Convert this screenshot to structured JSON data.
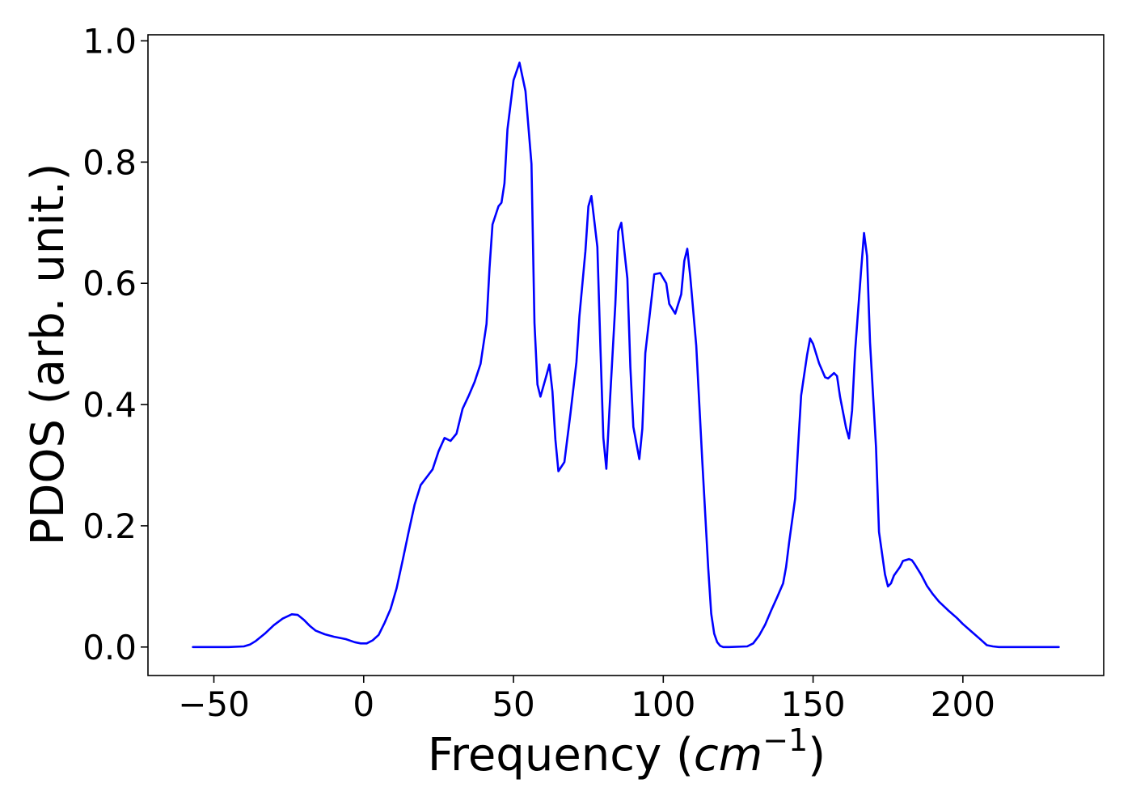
{
  "chart_data": {
    "type": "line",
    "title": "",
    "xlabel": "Frequency (",
    "xlabel_math_base": "cm",
    "xlabel_math_sup": "−1",
    "xlabel_suffix": ")",
    "ylabel": "PDOS (arb. unit.)",
    "xlim": [
      -72,
      247
    ],
    "ylim": [
      -0.047,
      1.01
    ],
    "xticks": [
      -50,
      0,
      50,
      100,
      150,
      200
    ],
    "xtick_labels": [
      "−50",
      "0",
      "50",
      "100",
      "150",
      "200"
    ],
    "yticks": [
      0.0,
      0.2,
      0.4,
      0.6,
      0.8,
      1.0
    ],
    "ytick_labels": [
      "0.0",
      "0.2",
      "0.4",
      "0.6",
      "0.8",
      "1.0"
    ],
    "grid": false,
    "colors": {
      "line": "#0000ff",
      "axes": "#000000",
      "background": "#ffffff"
    },
    "series": [
      {
        "x": [
          -57,
          -45,
          -40,
          -38,
          -36,
          -33,
          -30,
          -27,
          -24,
          -22,
          -20,
          -18,
          -16,
          -13,
          -10,
          -6,
          -3,
          -1,
          1,
          3,
          5,
          7,
          9,
          11,
          13,
          15,
          17,
          19,
          21,
          23,
          25,
          27,
          29,
          31,
          33,
          35,
          37,
          39,
          41,
          42,
          43,
          45,
          46,
          47,
          48,
          50,
          52,
          54,
          56,
          57,
          58,
          59,
          61,
          62,
          63,
          64,
          65,
          67,
          69,
          71,
          72,
          74,
          75,
          76,
          78,
          79,
          80,
          81,
          82,
          84,
          85,
          86,
          88,
          89,
          90,
          92,
          93,
          94,
          96,
          97,
          99,
          101,
          102,
          104,
          106,
          107,
          108,
          109,
          111,
          113,
          115,
          116,
          117,
          118,
          119,
          120,
          122,
          128,
          130,
          132,
          134,
          136,
          138,
          140,
          141,
          142,
          144,
          145,
          146,
          148,
          149,
          150,
          152,
          154,
          155,
          157,
          158,
          159,
          161,
          162,
          163,
          164,
          166,
          167,
          168,
          169,
          171,
          172,
          174,
          175,
          176,
          177,
          179,
          180,
          182,
          183,
          184,
          186,
          188,
          190,
          192,
          195,
          198,
          200,
          203,
          206,
          208,
          210,
          212,
          215,
          220,
          232
        ],
        "y": [
          0.0,
          0.0,
          0.001,
          0.004,
          0.01,
          0.022,
          0.036,
          0.047,
          0.054,
          0.053,
          0.045,
          0.035,
          0.027,
          0.021,
          0.017,
          0.013,
          0.008,
          0.006,
          0.006,
          0.011,
          0.02,
          0.04,
          0.063,
          0.097,
          0.143,
          0.19,
          0.235,
          0.267,
          0.28,
          0.293,
          0.323,
          0.345,
          0.34,
          0.352,
          0.393,
          0.414,
          0.437,
          0.467,
          0.533,
          0.625,
          0.697,
          0.727,
          0.733,
          0.765,
          0.854,
          0.935,
          0.964,
          0.917,
          0.797,
          0.535,
          0.433,
          0.413,
          0.448,
          0.466,
          0.422,
          0.342,
          0.29,
          0.305,
          0.385,
          0.47,
          0.546,
          0.653,
          0.727,
          0.744,
          0.66,
          0.497,
          0.345,
          0.294,
          0.388,
          0.565,
          0.686,
          0.7,
          0.608,
          0.462,
          0.363,
          0.31,
          0.36,
          0.485,
          0.571,
          0.615,
          0.617,
          0.6,
          0.566,
          0.55,
          0.582,
          0.637,
          0.657,
          0.611,
          0.497,
          0.308,
          0.13,
          0.055,
          0.022,
          0.008,
          0.002,
          0.0,
          0.0,
          0.001,
          0.006,
          0.019,
          0.037,
          0.06,
          0.082,
          0.105,
          0.132,
          0.172,
          0.245,
          0.332,
          0.415,
          0.482,
          0.509,
          0.5,
          0.468,
          0.445,
          0.443,
          0.452,
          0.447,
          0.413,
          0.362,
          0.344,
          0.39,
          0.487,
          0.62,
          0.683,
          0.645,
          0.503,
          0.33,
          0.19,
          0.12,
          0.1,
          0.105,
          0.118,
          0.132,
          0.142,
          0.145,
          0.143,
          0.136,
          0.12,
          0.101,
          0.087,
          0.075,
          0.061,
          0.048,
          0.038,
          0.025,
          0.012,
          0.003,
          0.001,
          0.0,
          0.0,
          0.0,
          0.0
        ]
      }
    ]
  }
}
